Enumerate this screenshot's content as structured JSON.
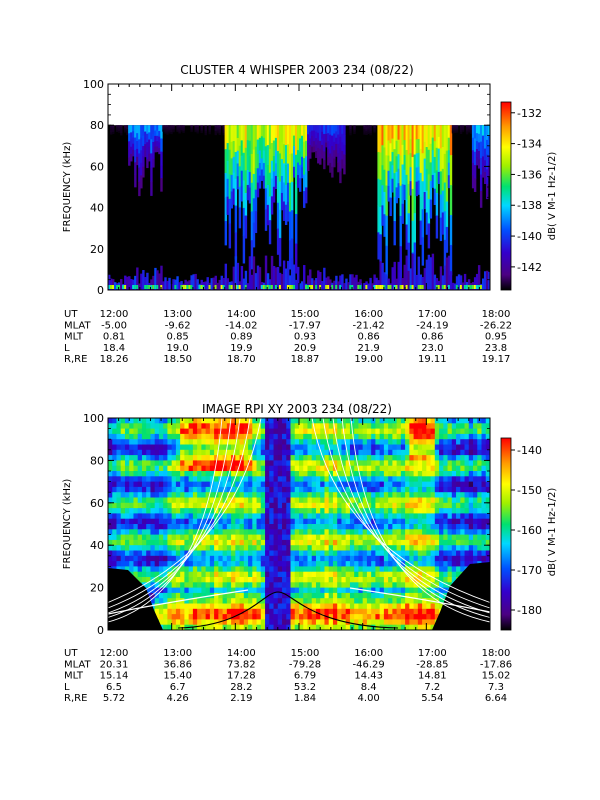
{
  "chart_data": [
    {
      "type": "heatmap",
      "title": "CLUSTER 4 WHISPER 2003 234 (08/22)",
      "ylabel": "FREQUENCY (kHz)",
      "ylim": [
        0,
        100
      ],
      "yticks": [
        "0",
        "20",
        "40",
        "60",
        "80",
        "100"
      ],
      "data_ceiling_khz": 80,
      "xlim_hours": [
        12,
        18
      ],
      "x_ticks": [
        "12:00",
        "13:00",
        "14:00",
        "15:00",
        "16:00",
        "17:00",
        "18:00"
      ],
      "colorbar": {
        "label": "dB( V M⁻¹ Hz⁻¹ᐟ²)",
        "label_text": "dB( V M-1 Hz-1/2)",
        "range": [
          -143.5,
          -131.3
        ],
        "ticks": [
          "-132",
          "-134",
          "-136",
          "-138",
          "-140",
          "-142"
        ]
      },
      "ephemeris": [
        {
          "label": "UT",
          "values": [
            "12:00",
            "13:00",
            "14:00",
            "15:00",
            "16:00",
            "17:00",
            "18:00"
          ]
        },
        {
          "label": "MLAT",
          "values": [
            "-5.00",
            "-9.62",
            "-14.02",
            "-17.97",
            "-21.42",
            "-24.19",
            "-26.22"
          ]
        },
        {
          "label": "MLT",
          "values": [
            "0.81",
            "0.85",
            "0.89",
            "0.93",
            "0.86",
            "0.86",
            "0.95"
          ]
        },
        {
          "label": "L",
          "values": [
            "18.4",
            "19.0",
            "19.9",
            "20.9",
            "21.9",
            "23.0",
            "23.8"
          ]
        },
        {
          "label": "R,RE",
          "values": [
            "18.26",
            "18.50",
            "18.70",
            "18.87",
            "19.00",
            "19.11",
            "19.17"
          ]
        }
      ]
    },
    {
      "type": "heatmap",
      "title": "IMAGE RPI XY 2003 234 (08/22)",
      "ylabel": "FREQUENCY (kHz)",
      "ylim": [
        0,
        100
      ],
      "yticks": [
        "0",
        "20",
        "40",
        "60",
        "80",
        "100"
      ],
      "xlim_hours": [
        12,
        18
      ],
      "x_ticks": [
        "12:00",
        "13:00",
        "14:00",
        "15:00",
        "16:00",
        "17:00",
        "18:00"
      ],
      "colorbar": {
        "label_text": "dB( V M-1 Hz-1/2)",
        "range": [
          -185,
          -137
        ],
        "ticks": [
          "-140",
          "-150",
          "-160",
          "-170",
          "-180"
        ]
      },
      "ephemeris": [
        {
          "label": "UT",
          "values": [
            "12:00",
            "13:00",
            "14:00",
            "15:00",
            "16:00",
            "17:00",
            "18:00"
          ]
        },
        {
          "label": "MLAT",
          "values": [
            "20.31",
            "36.86",
            "73.82",
            "-79.28",
            "-46.29",
            "-28.85",
            "-17.86"
          ]
        },
        {
          "label": "MLT",
          "values": [
            "15.14",
            "15.40",
            "17.28",
            "6.79",
            "14.43",
            "14.81",
            "15.02"
          ]
        },
        {
          "label": "L",
          "values": [
            "6.5",
            "6.7",
            "28.2",
            "53.2",
            "8.4",
            "7.2",
            "7.3"
          ]
        },
        {
          "label": "R,RE",
          "values": [
            "5.72",
            "4.26",
            "2.19",
            "1.84",
            "4.00",
            "5.54",
            "6.64"
          ]
        }
      ]
    }
  ]
}
